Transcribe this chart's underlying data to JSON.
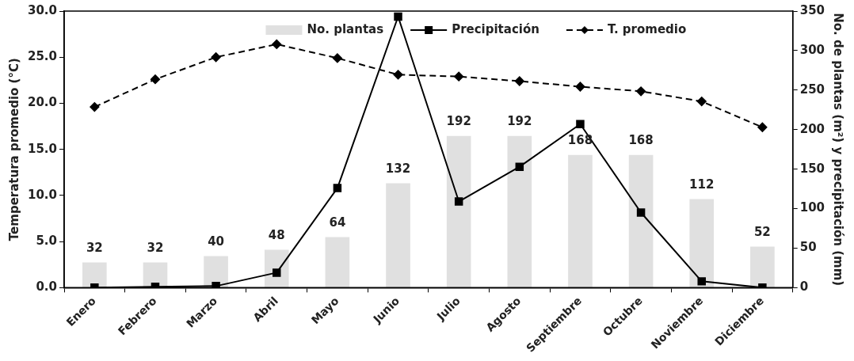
{
  "chart_data": {
    "type": "bar",
    "ylabel": "Temperatura promedio (°C)",
    "y2label": "No. de plantas (m²) y precipitación (mm)",
    "categories": [
      "Enero",
      "Febrero",
      "Marzo",
      "Abril",
      "Mayo",
      "Junio",
      "Julio",
      "Agosto",
      "Septiembre",
      "Octubre",
      "Noviembre",
      "Diciembre"
    ],
    "series": [
      {
        "name": "No. plantas",
        "axis": "y2",
        "color": "#e0e0e0",
        "values": [
          32,
          32,
          40,
          48,
          64,
          132,
          192,
          192,
          168,
          168,
          112,
          52
        ],
        "value_labels": [
          "32",
          "32",
          "40",
          "48",
          "64",
          "132",
          "192",
          "192",
          "168",
          "168",
          "112",
          "52"
        ]
      },
      {
        "name": "Precipitación",
        "type": "line",
        "axis": "y2",
        "color": "#000000",
        "marker": "square",
        "line_style": "solid",
        "values": [
          0,
          1,
          2,
          19,
          126,
          343,
          109,
          153,
          207,
          95,
          8,
          0
        ]
      },
      {
        "name": "T. promedio",
        "type": "line",
        "axis": "y",
        "color": "#000000",
        "marker": "diamond",
        "line_style": "dashed",
        "values": [
          19.6,
          22.6,
          25.0,
          26.4,
          24.9,
          23.1,
          22.9,
          22.4,
          21.8,
          21.3,
          20.2,
          17.4
        ]
      }
    ],
    "ylim": [
      0,
      30
    ],
    "yticks": [
      {
        "value": 0,
        "label": "0.0"
      },
      {
        "value": 5,
        "label": "5.0"
      },
      {
        "value": 10,
        "label": "10.0"
      },
      {
        "value": 15,
        "label": "15.0"
      },
      {
        "value": 20,
        "label": "20.0"
      },
      {
        "value": 25,
        "label": "25.0"
      },
      {
        "value": 30,
        "label": "30.0"
      }
    ],
    "y2lim": [
      0,
      350
    ],
    "y2ticks": [
      0,
      50,
      100,
      150,
      200,
      250,
      300,
      350
    ],
    "grid": false,
    "legend": "top"
  }
}
